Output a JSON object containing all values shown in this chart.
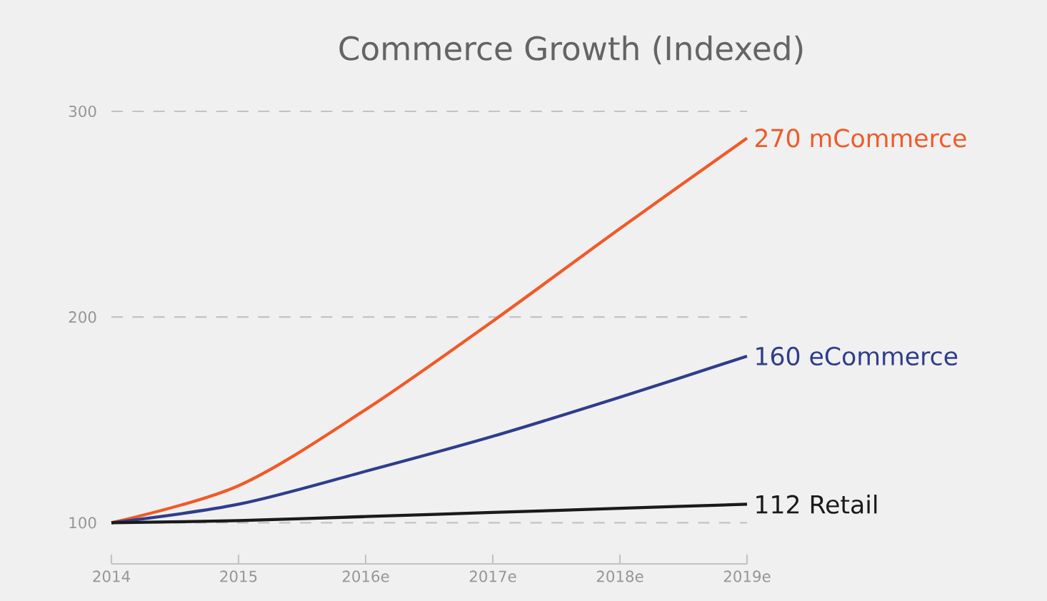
{
  "chart_data": {
    "type": "line",
    "title": "Commerce Growth (Indexed)",
    "categories": [
      "2014",
      "2015",
      "2016e",
      "2017e",
      "2018e",
      "2019e"
    ],
    "series": [
      {
        "name": "270 mCommerce",
        "color": "#f05a28",
        "values": [
          100,
          118,
          155,
          198,
          243,
          287
        ]
      },
      {
        "name": "160 eCommerce",
        "color": "#2e3d8c",
        "values": [
          100,
          109,
          125,
          142,
          161,
          181
        ]
      },
      {
        "name": "112 Retail",
        "color": "#1a1a1a",
        "values": [
          100,
          101,
          103,
          105,
          107,
          109
        ]
      }
    ],
    "ylim": [
      80,
      300
    ],
    "yticks": [
      100,
      200,
      300
    ],
    "grid": "y"
  }
}
